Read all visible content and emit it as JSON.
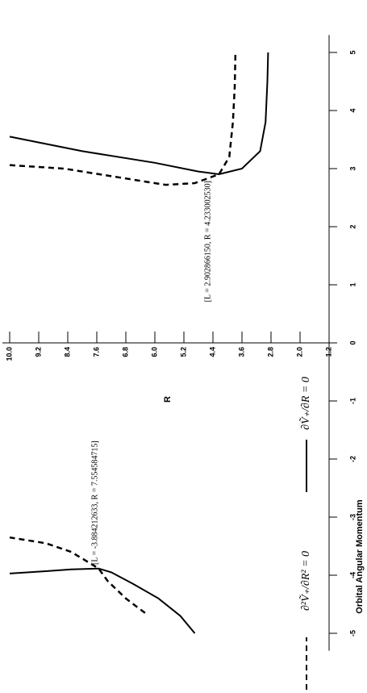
{
  "chart_data": {
    "type": "line",
    "xlabel": "Orbital Angular Momentum",
    "ylabel": "R",
    "xlim": [
      -5.3,
      5.3
    ],
    "ylim": [
      1.2,
      10.2
    ],
    "xticks": [
      -5,
      -4,
      -3,
      -2,
      -1,
      0,
      1,
      2,
      3,
      4,
      5
    ],
    "yticks": [
      {
        "value": 10,
        "label": "10.0"
      },
      9.2,
      8.4,
      7.6,
      6.8,
      {
        "value": 6,
        "label": "6.0"
      },
      5.2,
      4.4,
      3.6,
      2.8,
      {
        "value": 2,
        "label": "2.0"
      },
      1.2
    ],
    "series": [
      {
        "name": "∂²Ṽ₊/∂R² = 0",
        "color": "#000000",
        "dash": true,
        "x": [
          -4.65,
          -4.4,
          -4.1,
          -3.884,
          -3.6,
          -3.45,
          -3.35,
          null,
          3.06,
          3.0,
          2.85,
          2.72,
          2.75,
          2.903,
          3.2,
          3.8,
          4.4,
          5.0
        ],
        "values": [
          6.27,
          6.8,
          7.3,
          7.55,
          8.3,
          9.0,
          10.0,
          null,
          10.0,
          8.5,
          7.0,
          5.7,
          4.9,
          4.233,
          3.95,
          3.85,
          3.8,
          3.78
        ]
      },
      {
        "name": "∂Ṽ₊/∂R = 0",
        "color": "#000000",
        "dash": false,
        "x": [
          -5.0,
          -4.7,
          -4.4,
          -4.15,
          -3.95,
          -3.885,
          -3.9,
          -3.93,
          -3.97,
          null,
          3.55,
          3.3,
          3.1,
          2.95,
          2.903,
          3.0,
          3.3,
          3.8,
          4.5,
          5.0
        ],
        "values": [
          4.9,
          5.3,
          5.9,
          6.6,
          7.2,
          7.55,
          8.3,
          9.0,
          10.0,
          null,
          10.0,
          8.0,
          6.0,
          4.8,
          4.233,
          3.6,
          3.1,
          2.95,
          2.9,
          2.88
        ]
      }
    ],
    "annotations": [
      "[L = -3.884212633, R = 7.554584715]",
      "[L = 2.902866150, R = 4.233002530]"
    ]
  }
}
